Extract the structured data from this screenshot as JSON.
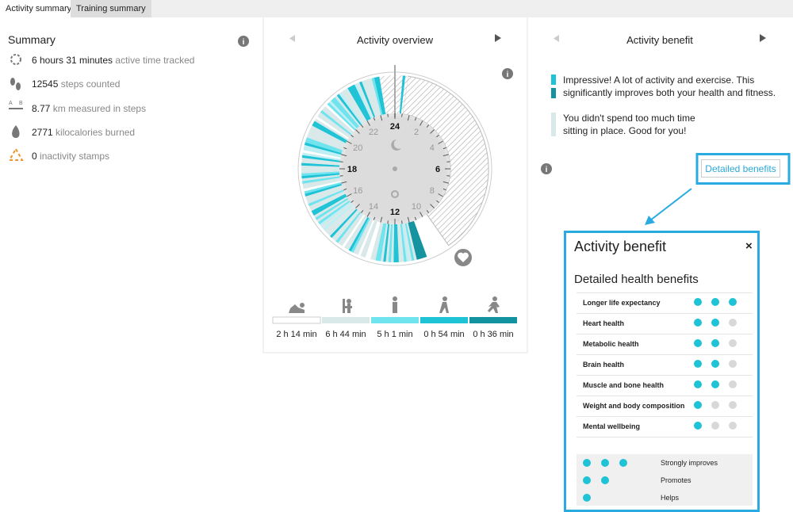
{
  "tabs": [
    "Activity summary",
    "Training summary"
  ],
  "summary": {
    "title": "Summary",
    "items": [
      {
        "value": "6 hours 31 minutes",
        "label": "active time tracked"
      },
      {
        "value": "12545",
        "label": "steps counted"
      },
      {
        "value": "8.77",
        "label": "km measured in steps"
      },
      {
        "value": "2771",
        "label": "kilocalories burned"
      },
      {
        "value": "0",
        "label": "inactivity stamps"
      }
    ]
  },
  "overview": {
    "title": "Activity overview",
    "hours": [
      "24",
      "2",
      "4",
      "6",
      "8",
      "10",
      "12",
      "14",
      "16",
      "18",
      "20",
      "22"
    ],
    "levels": [
      {
        "duration": "2 h 14 min",
        "color": "#ffffff"
      },
      {
        "duration": "6 h 44 min",
        "color": "#d9e9ea"
      },
      {
        "duration": "5 h 1 min",
        "color": "#6fe3ee"
      },
      {
        "duration": "0 h 54 min",
        "color": "#1fc3d6"
      },
      {
        "duration": "0 h 36 min",
        "color": "#13939f"
      }
    ]
  },
  "benefit": {
    "title": "Activity benefit",
    "messages": [
      "Impressive! A lot of activity and exercise. This significantly improves both your health and fitness.",
      "You didn't spend too much time sitting in place. Good for you!"
    ],
    "button": "Detailed benefits"
  },
  "popup": {
    "title": "Activity benefit",
    "close": "×",
    "subtitle": "Detailed health benefits",
    "rows": [
      {
        "label": "Longer life expectancy",
        "level": 3
      },
      {
        "label": "Heart health",
        "level": 2
      },
      {
        "label": "Metabolic health",
        "level": 2
      },
      {
        "label": "Brain health",
        "level": 2
      },
      {
        "label": "Muscle and bone health",
        "level": 2
      },
      {
        "label": "Weight and body composition",
        "level": 1
      },
      {
        "label": "Mental wellbeing",
        "level": 1
      }
    ],
    "legend": [
      {
        "dots": 3,
        "label": "Strongly improves"
      },
      {
        "dots": 2,
        "label": "Promotes"
      },
      {
        "dots": 1,
        "label": "Helps"
      }
    ]
  }
}
